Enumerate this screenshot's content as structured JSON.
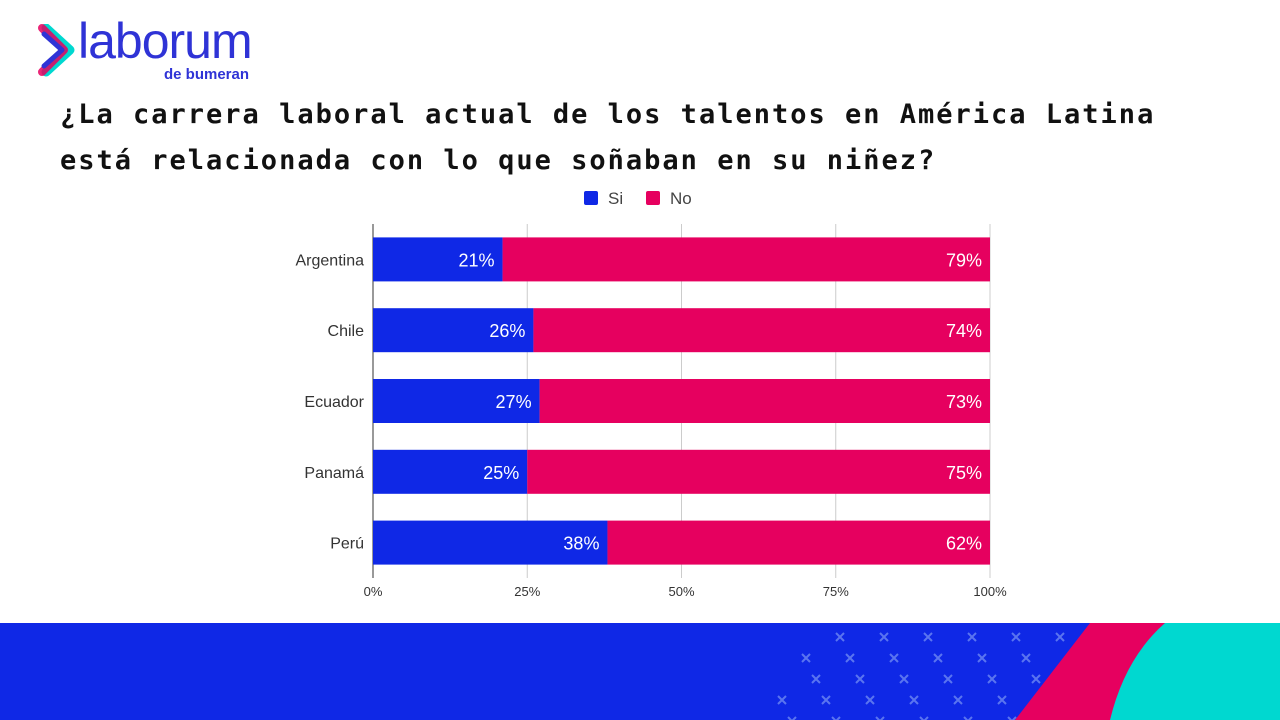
{
  "logo": {
    "word": "laborum",
    "sub": "de bumeran"
  },
  "title": "¿La carrera laboral actual de los talentos en América Latina está relacionada con lo que soñaban en su niñez?",
  "colors": {
    "si": "#0f28e6",
    "no": "#e6005f",
    "footer_blue": "#0f28e6",
    "footer_pink": "#e6005f",
    "footer_teal": "#00d8d0"
  },
  "chart_data": {
    "type": "bar",
    "orientation": "horizontal",
    "stacked": true,
    "categories": [
      "Argentina",
      "Chile",
      "Ecuador",
      "Panamá",
      "Perú"
    ],
    "series": [
      {
        "name": "Si",
        "values": [
          21,
          26,
          27,
          25,
          38
        ],
        "labels": [
          "21%",
          "26%",
          "27%",
          "25%",
          "38%"
        ]
      },
      {
        "name": "No",
        "values": [
          79,
          74,
          73,
          75,
          62
        ],
        "labels": [
          "79%",
          "74%",
          "73%",
          "75%",
          "62%"
        ]
      }
    ],
    "xlim": [
      0,
      100
    ],
    "xticks": [
      "0%",
      "25%",
      "50%",
      "75%",
      "100%"
    ],
    "grid": true,
    "legend": "top"
  }
}
